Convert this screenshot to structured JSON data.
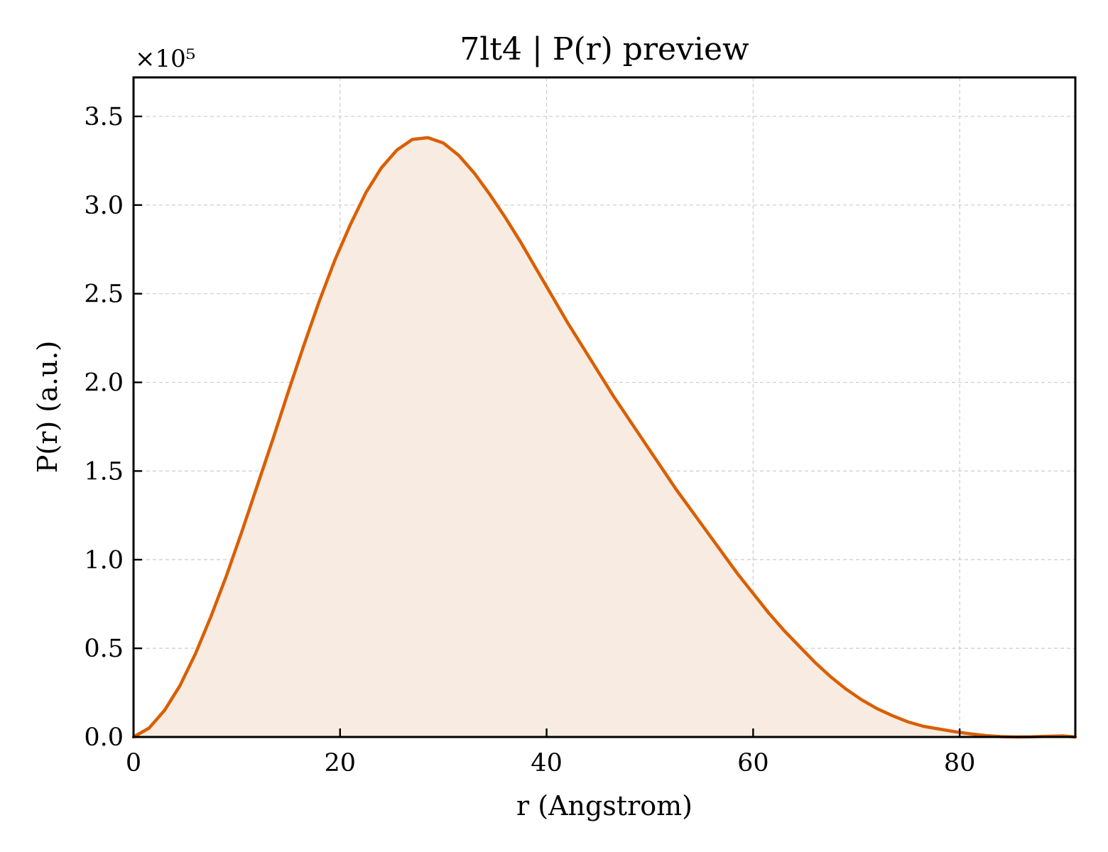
{
  "chart_data": {
    "type": "area",
    "title": "7lt4 | P(r) preview",
    "xlabel": "r (Angstrom)",
    "ylabel": "P(r) (a.u.)",
    "y_multiplier_label": "×10⁵",
    "xlim": [
      0,
      91.2
    ],
    "ylim": [
      0,
      3.72
    ],
    "x_ticks": [
      0,
      20,
      40,
      60,
      80
    ],
    "x_tick_labels": [
      "0",
      "20",
      "40",
      "60",
      "80"
    ],
    "y_ticks": [
      0,
      0.5,
      1.0,
      1.5,
      2.0,
      2.5,
      3.0,
      3.5
    ],
    "y_tick_labels": [
      "0.0",
      "0.5",
      "1.0",
      "1.5",
      "2.0",
      "2.5",
      "3.0",
      "3.5"
    ],
    "grid": true,
    "line_color": "#d95f02",
    "fill_color": "#f8ebe1",
    "series": [
      {
        "x": [
          0,
          1.5,
          3,
          4.5,
          6,
          7.5,
          9,
          10.5,
          12,
          13.5,
          15,
          16.5,
          18,
          19.5,
          21,
          22.5,
          24,
          25.5,
          27,
          28.5,
          30,
          31.5,
          33,
          34.5,
          36,
          37.5,
          39,
          40.5,
          42,
          43.5,
          45,
          46.5,
          48,
          49.5,
          51,
          52.5,
          54,
          55.5,
          57,
          58.5,
          60,
          61.5,
          63,
          64.5,
          66,
          67.5,
          69,
          70.5,
          72,
          73.5,
          75,
          76.5,
          78,
          79.5,
          81,
          82.5,
          84,
          85.5,
          87,
          88.5,
          90,
          91.2
        ],
        "y": [
          0,
          0.05,
          0.15,
          0.29,
          0.47,
          0.68,
          0.91,
          1.16,
          1.42,
          1.68,
          1.95,
          2.21,
          2.46,
          2.69,
          2.89,
          3.07,
          3.21,
          3.31,
          3.37,
          3.38,
          3.35,
          3.28,
          3.18,
          3.06,
          2.93,
          2.79,
          2.64,
          2.49,
          2.34,
          2.2,
          2.06,
          1.92,
          1.79,
          1.66,
          1.53,
          1.4,
          1.28,
          1.16,
          1.04,
          0.92,
          0.81,
          0.7,
          0.6,
          0.51,
          0.42,
          0.34,
          0.27,
          0.21,
          0.16,
          0.12,
          0.085,
          0.06,
          0.045,
          0.03,
          0.018,
          0.008,
          0.002,
          0,
          0.001,
          0.004,
          0.006,
          0
        ]
      }
    ]
  }
}
